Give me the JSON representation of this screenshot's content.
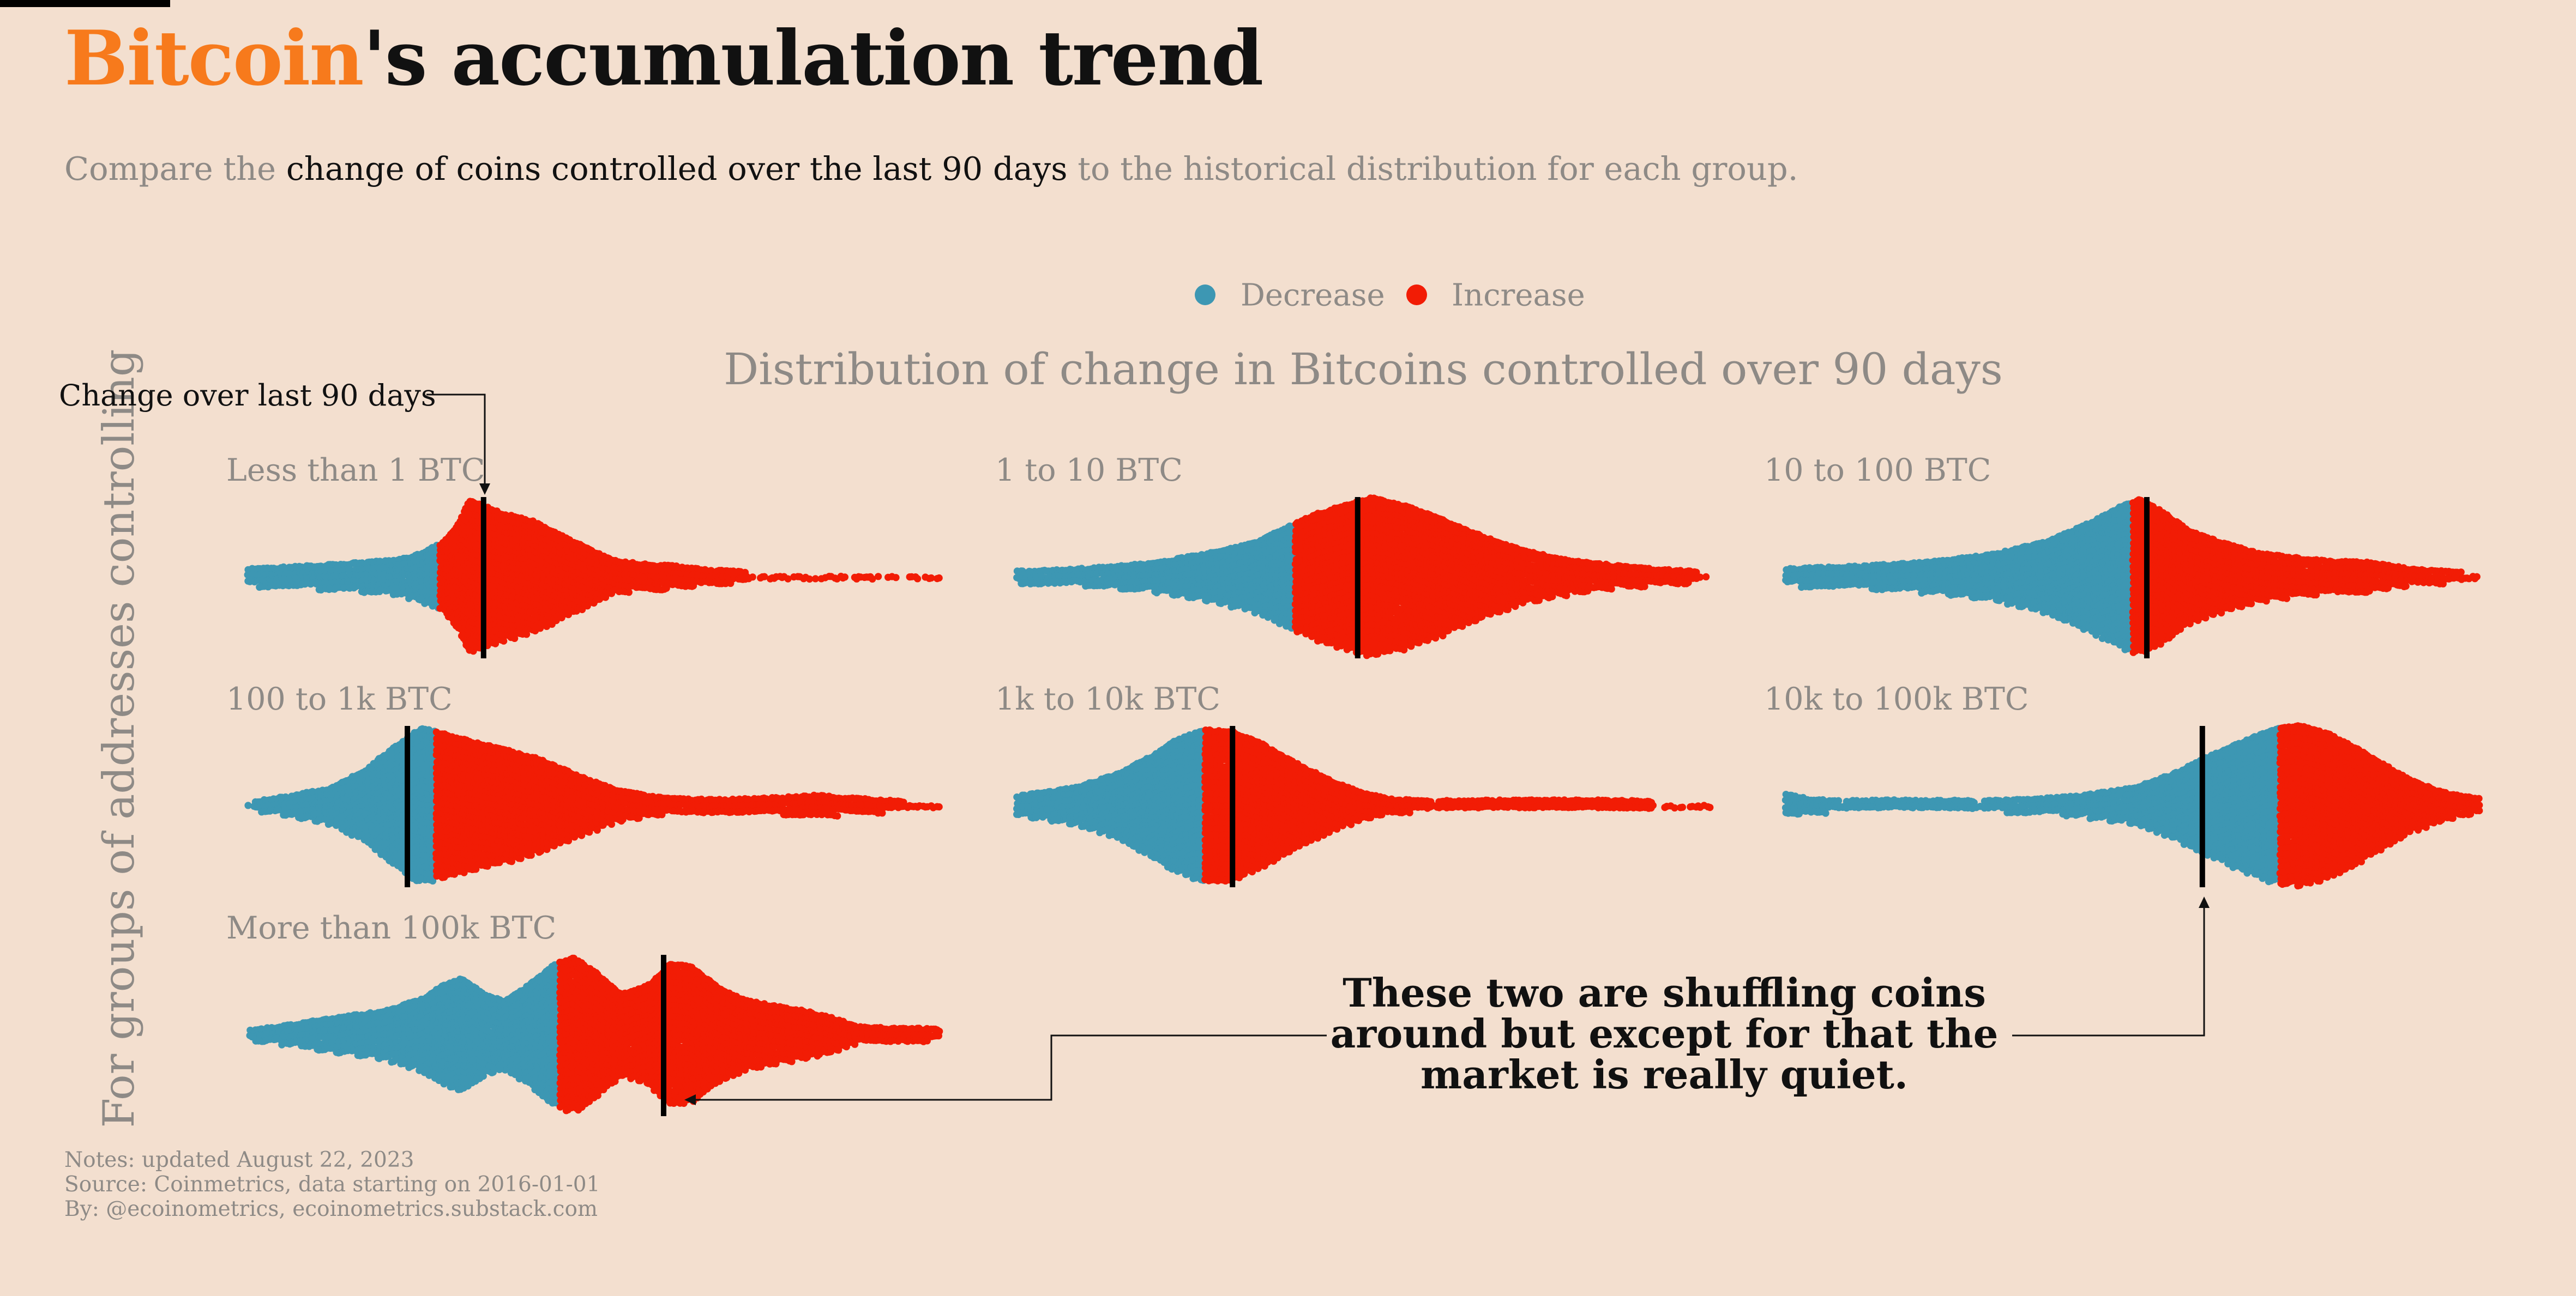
{
  "title": {
    "accent": "Bitcoin",
    "rest": "'s accumulation trend"
  },
  "subtitle": {
    "pre": "Compare the ",
    "highlight": "change of coins controlled over the last 90 days",
    "post": " to the historical distribution for each group."
  },
  "colors": {
    "decrease": "#3d97b3",
    "increase": "#f21c05",
    "marker": "#000000",
    "muted": "#8e8a86",
    "accent": "#f77a1c"
  },
  "chart_data": {
    "type": "scatter",
    "subtype": "beeswarm",
    "title": "Distribution of change in Bitcoins controlled over 90 days",
    "y_axis_label": "For groups of addresses controlling",
    "legend": {
      "position": "top-center",
      "items": [
        {
          "name": "Decrease",
          "color": "#3d97b3"
        },
        {
          "name": "Increase",
          "color": "#f21c05"
        }
      ]
    },
    "x_range": [
      0,
      100
    ],
    "panels": [
      {
        "label": "Less than 1 BTC",
        "current": 34,
        "zero": 27.5,
        "range": [
          0,
          100
        ],
        "points": [
          [
            0,
            10
          ],
          [
            12,
            15
          ],
          [
            20,
            20
          ],
          [
            24,
            26
          ],
          [
            28,
            42
          ],
          [
            30,
            60
          ],
          [
            32,
            95
          ],
          [
            34,
            88
          ],
          [
            37,
            78
          ],
          [
            41,
            70
          ],
          [
            45,
            52
          ],
          [
            49,
            36
          ],
          [
            53,
            20
          ],
          [
            57,
            16
          ],
          [
            61,
            14
          ],
          [
            66,
            9
          ],
          [
            72,
            6
          ],
          [
            80,
            6
          ],
          [
            90,
            5
          ],
          [
            100,
            4
          ]
        ]
      },
      {
        "label": "1 to 10 BTC",
        "current": 49,
        "zero": 40,
        "range": [
          0,
          100
        ],
        "points": [
          [
            0,
            7
          ],
          [
            5,
            8
          ],
          [
            12,
            12
          ],
          [
            20,
            18
          ],
          [
            28,
            30
          ],
          [
            34,
            42
          ],
          [
            39,
            62
          ],
          [
            43,
            78
          ],
          [
            47,
            88
          ],
          [
            51,
            98
          ],
          [
            56,
            88
          ],
          [
            61,
            72
          ],
          [
            67,
            50
          ],
          [
            73,
            32
          ],
          [
            80,
            20
          ],
          [
            87,
            13
          ],
          [
            93,
            9
          ],
          [
            97,
            7
          ],
          [
            100,
            4
          ]
        ]
      },
      {
        "label": "10 to 100 BTC",
        "current": 52,
        "zero": 50,
        "range": [
          0,
          100
        ],
        "points": [
          [
            0,
            10
          ],
          [
            10,
            13
          ],
          [
            20,
            18
          ],
          [
            30,
            28
          ],
          [
            38,
            45
          ],
          [
            44,
            68
          ],
          [
            48,
            86
          ],
          [
            51,
            96
          ],
          [
            54,
            82
          ],
          [
            58,
            58
          ],
          [
            63,
            42
          ],
          [
            68,
            30
          ],
          [
            73,
            24
          ],
          [
            78,
            20
          ],
          [
            84,
            18
          ],
          [
            90,
            10
          ],
          [
            95,
            7
          ],
          [
            100,
            5
          ]
        ]
      },
      {
        "label": "100 to 1k BTC",
        "current": 23,
        "zero": 27,
        "range": [
          0,
          100
        ],
        "points": [
          [
            0,
            5
          ],
          [
            6,
            12
          ],
          [
            12,
            22
          ],
          [
            17,
            45
          ],
          [
            21,
            72
          ],
          [
            25,
            96
          ],
          [
            28,
            90
          ],
          [
            32,
            80
          ],
          [
            37,
            70
          ],
          [
            42,
            58
          ],
          [
            47,
            40
          ],
          [
            53,
            20
          ],
          [
            58,
            12
          ],
          [
            64,
            8
          ],
          [
            70,
            8
          ],
          [
            76,
            10
          ],
          [
            82,
            13
          ],
          [
            86,
            10
          ],
          [
            92,
            7
          ],
          [
            98,
            5
          ],
          [
            100,
            4
          ]
        ]
      },
      {
        "label": "1k to 10k BTC",
        "current": 31,
        "zero": 27,
        "range": [
          0,
          100
        ],
        "points": [
          [
            0,
            12
          ],
          [
            8,
            22
          ],
          [
            14,
            38
          ],
          [
            19,
            60
          ],
          [
            23,
            82
          ],
          [
            27,
            94
          ],
          [
            31,
            92
          ],
          [
            35,
            78
          ],
          [
            39,
            58
          ],
          [
            44,
            36
          ],
          [
            49,
            18
          ],
          [
            54,
            8
          ],
          [
            60,
            6
          ],
          [
            68,
            7
          ],
          [
            76,
            7
          ],
          [
            84,
            7
          ],
          [
            92,
            6
          ],
          [
            100,
            5
          ]
        ]
      },
      {
        "label": "10k to 100k BTC",
        "current": 60,
        "zero": 71,
        "range": [
          0,
          100
        ],
        "points": [
          [
            0,
            14
          ],
          [
            4,
            8
          ],
          [
            8,
            6
          ],
          [
            14,
            7
          ],
          [
            20,
            7
          ],
          [
            28,
            6
          ],
          [
            35,
            8
          ],
          [
            42,
            12
          ],
          [
            50,
            22
          ],
          [
            56,
            40
          ],
          [
            61,
            62
          ],
          [
            66,
            80
          ],
          [
            70,
            94
          ],
          [
            74,
            100
          ],
          [
            78,
            90
          ],
          [
            82,
            72
          ],
          [
            86,
            52
          ],
          [
            90,
            32
          ],
          [
            95,
            16
          ],
          [
            100,
            9
          ]
        ]
      },
      {
        "label": "More than 100k BTC",
        "current": 60,
        "zero": 45,
        "range": [
          0,
          100
        ],
        "points": [
          [
            0,
            6
          ],
          [
            6,
            12
          ],
          [
            10,
            18
          ],
          [
            15,
            24
          ],
          [
            20,
            30
          ],
          [
            25,
            44
          ],
          [
            28,
            60
          ],
          [
            31,
            70
          ],
          [
            34,
            50
          ],
          [
            37,
            42
          ],
          [
            40,
            58
          ],
          [
            44,
            86
          ],
          [
            47,
            96
          ],
          [
            50,
            78
          ],
          [
            54,
            50
          ],
          [
            58,
            62
          ],
          [
            61,
            88
          ],
          [
            64,
            84
          ],
          [
            68,
            58
          ],
          [
            72,
            42
          ],
          [
            76,
            36
          ],
          [
            80,
            30
          ],
          [
            84,
            22
          ],
          [
            88,
            10
          ],
          [
            93,
            8
          ],
          [
            97,
            8
          ],
          [
            100,
            6
          ]
        ]
      }
    ],
    "annotations": [
      {
        "text": "Change over last 90 days"
      },
      {
        "lines": [
          "These two are shuffling coins",
          "around but except for that the",
          "market is really quiet."
        ]
      }
    ]
  },
  "notes": [
    "Notes: updated August 22, 2023",
    "Source: Coinmetrics, data starting on 2016-01-01",
    "By: @ecoinometrics, ecoinometrics.substack.com"
  ]
}
